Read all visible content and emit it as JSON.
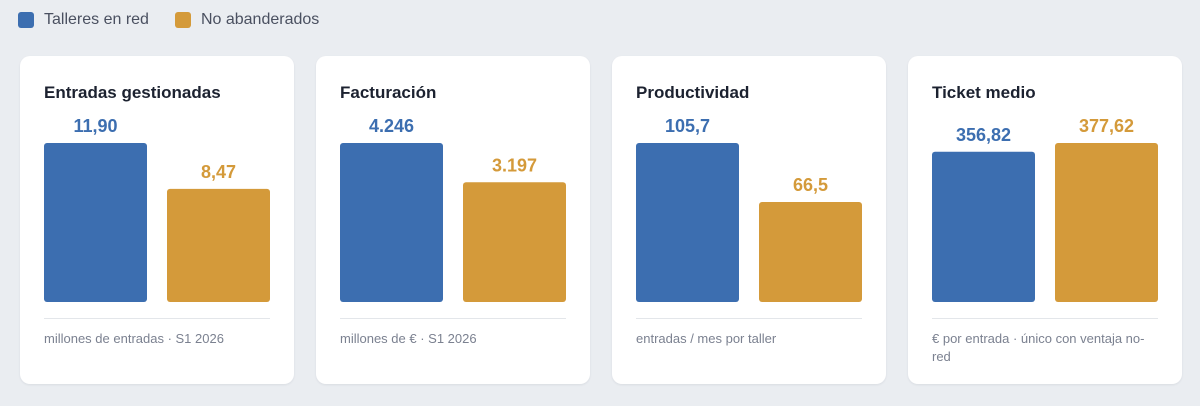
{
  "legend": [
    {
      "label": "Talleres en red",
      "color": "#3c6eb0"
    },
    {
      "label": "No abanderados",
      "color": "#d49a3a"
    }
  ],
  "colors": {
    "red": "#3c6eb0",
    "no_red": "#d49a3a"
  },
  "chart_data": [
    {
      "type": "bar",
      "title": "Entradas gestionadas",
      "categories": [
        "Talleres en red",
        "No abanderados"
      ],
      "values": [
        11.9,
        8.47
      ],
      "value_labels": [
        "11,90",
        "8,47"
      ],
      "footnote": "millones de entradas · S1 2026"
    },
    {
      "type": "bar",
      "title": "Facturación",
      "categories": [
        "Talleres en red",
        "No abanderados"
      ],
      "values": [
        4246,
        3197
      ],
      "value_labels": [
        "4.246",
        "3.197"
      ],
      "footnote": "millones de € · S1 2026"
    },
    {
      "type": "bar",
      "title": "Productividad",
      "categories": [
        "Talleres en red",
        "No abanderados"
      ],
      "values": [
        105.7,
        66.5
      ],
      "value_labels": [
        "105,7",
        "66,5"
      ],
      "footnote": "entradas / mes por taller"
    },
    {
      "type": "bar",
      "title": "Ticket medio",
      "categories": [
        "Talleres en red",
        "No abanderados"
      ],
      "values": [
        356.82,
        377.62
      ],
      "value_labels": [
        "356,82",
        "377,62"
      ],
      "footnote": "€ por entrada · único con ventaja no-red"
    }
  ]
}
